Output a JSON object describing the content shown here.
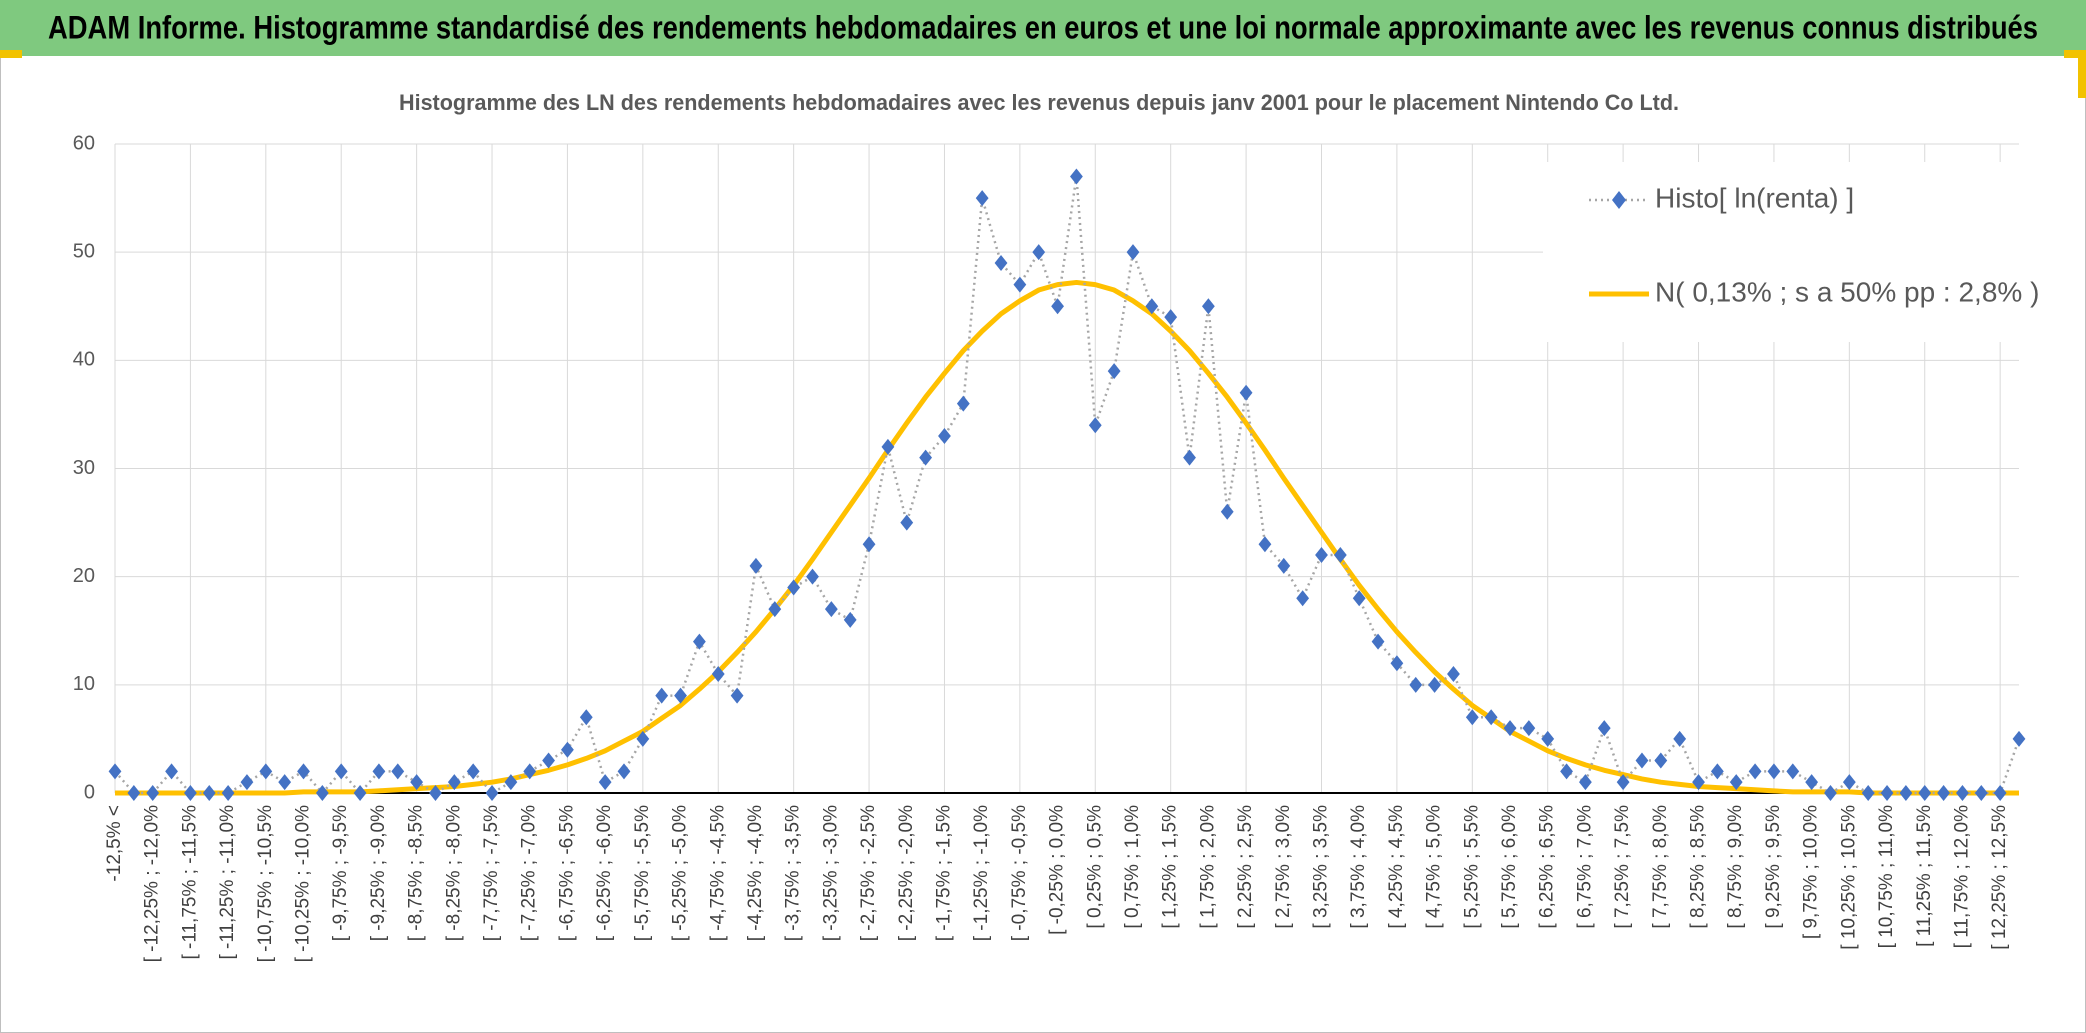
{
  "chart_data": {
    "type": "line",
    "header": "ADAM Informe. Histogramme standardisé des rendements hebdomadaires en euros et une loi normale approximante avec les revenus connus distribués",
    "title": "Histogramme des LN des rendements hebdomadaires avec les revenus depuis janv 2001 pour le placement Nintendo Co Ltd.",
    "categories": [
      "-12,5% <",
      null,
      "[ -12,25% ; -12,0%",
      null,
      "[ -11,75% ; -11,5%",
      null,
      "[ -11,25% ; -11,0%",
      null,
      "[ -10,75% ; -10,5%",
      null,
      "[ -10,25% ; -10,0%",
      null,
      "[ -9,75% ; -9,5%",
      null,
      "[ -9,25% ; -9,0%",
      null,
      "[ -8,75% ; -8,5%",
      null,
      "[ -8,25% ; -8,0%",
      null,
      "[ -7,75% ; -7,5%",
      null,
      "[ -7,25% ; -7,0%",
      null,
      "[ -6,75% ; -6,5%",
      null,
      "[ -6,25% ; -6,0%",
      null,
      "[ -5,75% ; -5,5%",
      null,
      "[ -5,25% ; -5,0%",
      null,
      "[ -4,75% ; -4,5%",
      null,
      "[ -4,25% ; -4,0%",
      null,
      "[ -3,75% ; -3,5%",
      null,
      "[ -3,25% ; -3,0%",
      null,
      "[ -2,75% ; -2,5%",
      null,
      "[ -2,25% ; -2,0%",
      null,
      "[ -1,75% ; -1,5%",
      null,
      "[ -1,25% ; -1,0%",
      null,
      "[ -0,75% ; -0,5%",
      null,
      "[ -0,25% ; 0,0%",
      null,
      "[ 0,25% ; 0,5%",
      null,
      "[ 0,75% ; 1,0%",
      null,
      "[ 1,25% ; 1,5%",
      null,
      "[ 1,75% ; 2,0%",
      null,
      "[ 2,25% ; 2,5%",
      null,
      "[ 2,75% ; 3,0%",
      null,
      "[ 3,25% ; 3,5%",
      null,
      "[ 3,75% ; 4,0%",
      null,
      "[ 4,25% ; 4,5%",
      null,
      "[ 4,75% ; 5,0%",
      null,
      "[ 5,25% ; 5,5%",
      null,
      "[ 5,75% ; 6,0%",
      null,
      "[ 6,25% ; 6,5%",
      null,
      "[ 6,75% ; 7,0%",
      null,
      "[ 7,25% ; 7,5%",
      null,
      "[ 7,75% ; 8,0%",
      null,
      "[ 8,25% ; 8,5%",
      null,
      "[ 8,75% ; 9,0%",
      null,
      "[ 9,25% ; 9,5%",
      null,
      "[ 9,75% ; 10,0%",
      null,
      "[ 10,25% ; 10,5%",
      null,
      "[ 10,75% ; 11,0%",
      null,
      "[ 11,25% ; 11,5%",
      null,
      "[ 11,75% ; 12,0%",
      null,
      "[ 12,25% ; 12,5%",
      null
    ],
    "series": [
      {
        "name": "Histo[ ln(renta) ]",
        "color": "#4472c4",
        "line_color": "#a6a6a6",
        "dashed": true,
        "marker": "diamond",
        "values": [
          2,
          0,
          0,
          2,
          0,
          0,
          0,
          1,
          2,
          1,
          2,
          0,
          2,
          0,
          2,
          2,
          1,
          0,
          1,
          2,
          0,
          1,
          2,
          3,
          4,
          7,
          1,
          2,
          5,
          9,
          9,
          14,
          11,
          9,
          21,
          17,
          19,
          20,
          17,
          16,
          23,
          32,
          25,
          31,
          33,
          36,
          55,
          49,
          47,
          50,
          45,
          57,
          34,
          39,
          50,
          45,
          44,
          31,
          45,
          26,
          37,
          23,
          21,
          18,
          22,
          22,
          18,
          14,
          12,
          10,
          10,
          11,
          7,
          7,
          6,
          6,
          5,
          2,
          1,
          6,
          1,
          3,
          3,
          5,
          1,
          2,
          1,
          2,
          2,
          2,
          1,
          0,
          1,
          0,
          0,
          0,
          0,
          0,
          0,
          0,
          0,
          5
        ]
      },
      {
        "name": "N( 0,13% ; s a 50% pp : 2,8% )",
        "color": "#ffc000",
        "dashed": false,
        "marker": "none",
        "values": [
          0,
          0,
          0,
          0,
          0,
          0,
          0,
          0,
          0,
          0,
          0.1,
          0.1,
          0.1,
          0.1,
          0.2,
          0.3,
          0.4,
          0.5,
          0.6,
          0.8,
          1.0,
          1.3,
          1.7,
          2.1,
          2.6,
          3.2,
          3.9,
          4.8,
          5.7,
          6.9,
          8.1,
          9.6,
          11.2,
          13.0,
          14.9,
          17.0,
          19.2,
          21.6,
          24.1,
          26.6,
          29.1,
          31.7,
          34.2,
          36.6,
          38.8,
          40.9,
          42.7,
          44.3,
          45.5,
          46.5,
          47.0,
          47.2,
          47.0,
          46.5,
          45.5,
          44.3,
          42.7,
          40.9,
          38.8,
          36.6,
          34.2,
          31.7,
          29.1,
          26.6,
          24.1,
          21.6,
          19.2,
          17.0,
          14.9,
          13.0,
          11.2,
          9.6,
          8.1,
          6.9,
          5.7,
          4.8,
          3.9,
          3.2,
          2.6,
          2.1,
          1.7,
          1.3,
          1.0,
          0.8,
          0.6,
          0.5,
          0.4,
          0.3,
          0.2,
          0.1,
          0.1,
          0.1,
          0.1,
          0,
          0,
          0,
          0,
          0,
          0,
          0,
          0,
          0
        ]
      }
    ],
    "ylim": [
      0,
      60
    ],
    "yticks": [
      0,
      10,
      20,
      30,
      40,
      50,
      60
    ],
    "grid": true,
    "legend": "top-right"
  }
}
